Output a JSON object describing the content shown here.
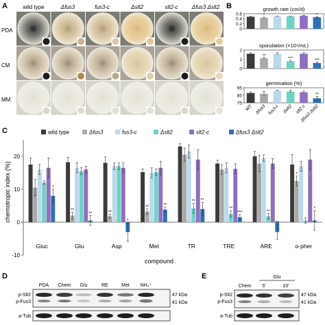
{
  "colors": {
    "wt": "#3b3b3b",
    "fus3": "#a9a9a9",
    "fus3c": "#bcd8ec",
    "slt2": "#6fd3c4",
    "slt2c": "#8f6fbf",
    "double": "#2f6fb5",
    "text": "#222222",
    "axis": "#444444"
  },
  "panelA": {
    "letter": "A",
    "columns": [
      "wild type",
      "Δfus3",
      "fus3-c",
      "Δslt2",
      "slt2-c",
      "Δfus3 Δslt2"
    ],
    "rows": [
      "PDA",
      "CM",
      "MM"
    ]
  },
  "panelB": {
    "letter": "B",
    "strains": [
      "WT",
      "Δfus3",
      "fus3-c",
      "Δslt2",
      "slt2-c",
      "Δfus3 Δslt2"
    ],
    "subplots": [
      {
        "title": "growth rate (cm/d)",
        "ylim": [
          0,
          0.6
        ],
        "yticks": [
          "0",
          "0.2",
          "0.4",
          "0.6"
        ],
        "values": [
          0.48,
          0.44,
          0.5,
          0.5,
          0.52,
          0.46
        ],
        "errors": [
          0.02,
          0.02,
          0.01,
          0.01,
          0.02,
          0.02
        ],
        "stars": [
          "",
          "*",
          "",
          "",
          "",
          "*"
        ]
      },
      {
        "title": "sporulation (×10⁶/mL)",
        "ylim": [
          0,
          2
        ],
        "yticks": [
          "0",
          "1",
          "2"
        ],
        "values": [
          1.6,
          1.1,
          1.6,
          0.8,
          1.6,
          0.6
        ],
        "errors": [
          0.1,
          0.1,
          0.1,
          0.1,
          0.1,
          0.1
        ],
        "stars": [
          "",
          "**",
          "",
          "***",
          "",
          "***"
        ]
      },
      {
        "title": "germination (%)",
        "ylim": [
          75,
          95
        ],
        "yticks": [
          "75",
          "85",
          "95"
        ],
        "values": [
          88,
          87,
          91,
          90,
          89,
          81
        ],
        "errors": [
          1.5,
          3,
          1,
          2,
          1.5,
          2.5
        ],
        "stars": [
          "",
          "",
          "",
          "",
          "",
          "**"
        ]
      }
    ]
  },
  "panelC": {
    "letter": "C",
    "legend": [
      "wild type",
      "Δfus3",
      "fus3-c",
      "Δslt2",
      "slt2-c",
      "Δfus3 Δslt2"
    ],
    "ylabel": "chemotropic index (%)",
    "xlabel": "compound",
    "yticks": [
      "-10",
      "0",
      "10",
      "20"
    ],
    "chart_data": {
      "type": "bar",
      "ylim": [
        -10,
        25
      ],
      "categories": [
        "Gluc",
        "Glu",
        "Asp",
        "Met",
        "TR",
        "TRE",
        "ARE",
        "α-pher"
      ],
      "series": [
        {
          "name": "wild type",
          "values": [
            17.5,
            18.2,
            18.0,
            15.2,
            23.0,
            17.8,
            20.0,
            17.5
          ],
          "errors": [
            2.0,
            1.5,
            1.8,
            1.0,
            0.8,
            1.0,
            1.5,
            3.0
          ]
        },
        {
          "name": "Δfus3",
          "values": [
            10.5,
            2.0,
            1.8,
            3.2,
            20.5,
            16.0,
            17.8,
            12.5
          ],
          "errors": [
            2.5,
            1.0,
            0.6,
            0.8,
            2.0,
            1.5,
            2.5,
            1.5
          ]
        },
        {
          "name": "fus3-c",
          "values": [
            16.0,
            16.5,
            17.0,
            15.0,
            21.5,
            16.5,
            19.5,
            17.0
          ],
          "errors": [
            1.5,
            1.5,
            1.0,
            1.5,
            2.0,
            1.5,
            1.0,
            1.5
          ]
        },
        {
          "name": "Δslt2",
          "values": [
            12.0,
            15.5,
            17.0,
            15.2,
            4.2,
            2.5,
            1.8,
            0.5
          ],
          "errors": [
            0.5,
            1.0,
            1.0,
            1.0,
            1.5,
            1.0,
            0.8,
            0.8
          ]
        },
        {
          "name": "slt2-c",
          "values": [
            16.5,
            16.0,
            16.5,
            16.5,
            19.0,
            16.2,
            17.8,
            19.0
          ],
          "errors": [
            3.0,
            1.0,
            1.5,
            2.0,
            3.0,
            1.5,
            1.5,
            3.0
          ]
        },
        {
          "name": "Δfus3 Δslt2",
          "values": [
            8.0,
            0.5,
            -3.0,
            3.8,
            4.0,
            1.5,
            -3.0,
            0.5
          ],
          "errors": [
            2.0,
            1.5,
            2.8,
            0.8,
            2.0,
            0.8,
            2.2,
            3.0
          ]
        }
      ],
      "stars": [
        [
          "",
          "",
          "",
          "",
          "",
          "*"
        ],
        [
          "",
          "**",
          "",
          "",
          "",
          "**"
        ],
        [
          "",
          "**",
          "",
          "",
          "",
          "*"
        ],
        [
          "",
          "**",
          "",
          "",
          "",
          "**"
        ],
        [
          "",
          "",
          "",
          "**",
          "",
          "**"
        ],
        [
          "",
          "",
          "",
          "**",
          "",
          "***"
        ],
        [
          "",
          "",
          "",
          "**",
          "",
          "**"
        ],
        [
          "",
          "*",
          "",
          "",
          "",
          "*"
        ]
      ]
    }
  },
  "panelD": {
    "letter": "D",
    "lanes": [
      "PDA",
      "Chem",
      "Glu",
      "RE",
      "Met",
      "NH₄⁺"
    ],
    "left_labels": [
      "p-Slt2",
      "p-Fus3",
      "a-Tub"
    ],
    "right_labels": [
      "47 kDa",
      "41 kDa"
    ]
  },
  "panelE": {
    "letter": "E",
    "group_label": "Glu",
    "lanes": [
      "Chem",
      "5'",
      "10'"
    ],
    "left_labels": [
      "p-Slt2",
      "p-Fus3",
      "a-Tub"
    ],
    "right_labels": [
      "47 kDa",
      "41 kDa"
    ]
  }
}
